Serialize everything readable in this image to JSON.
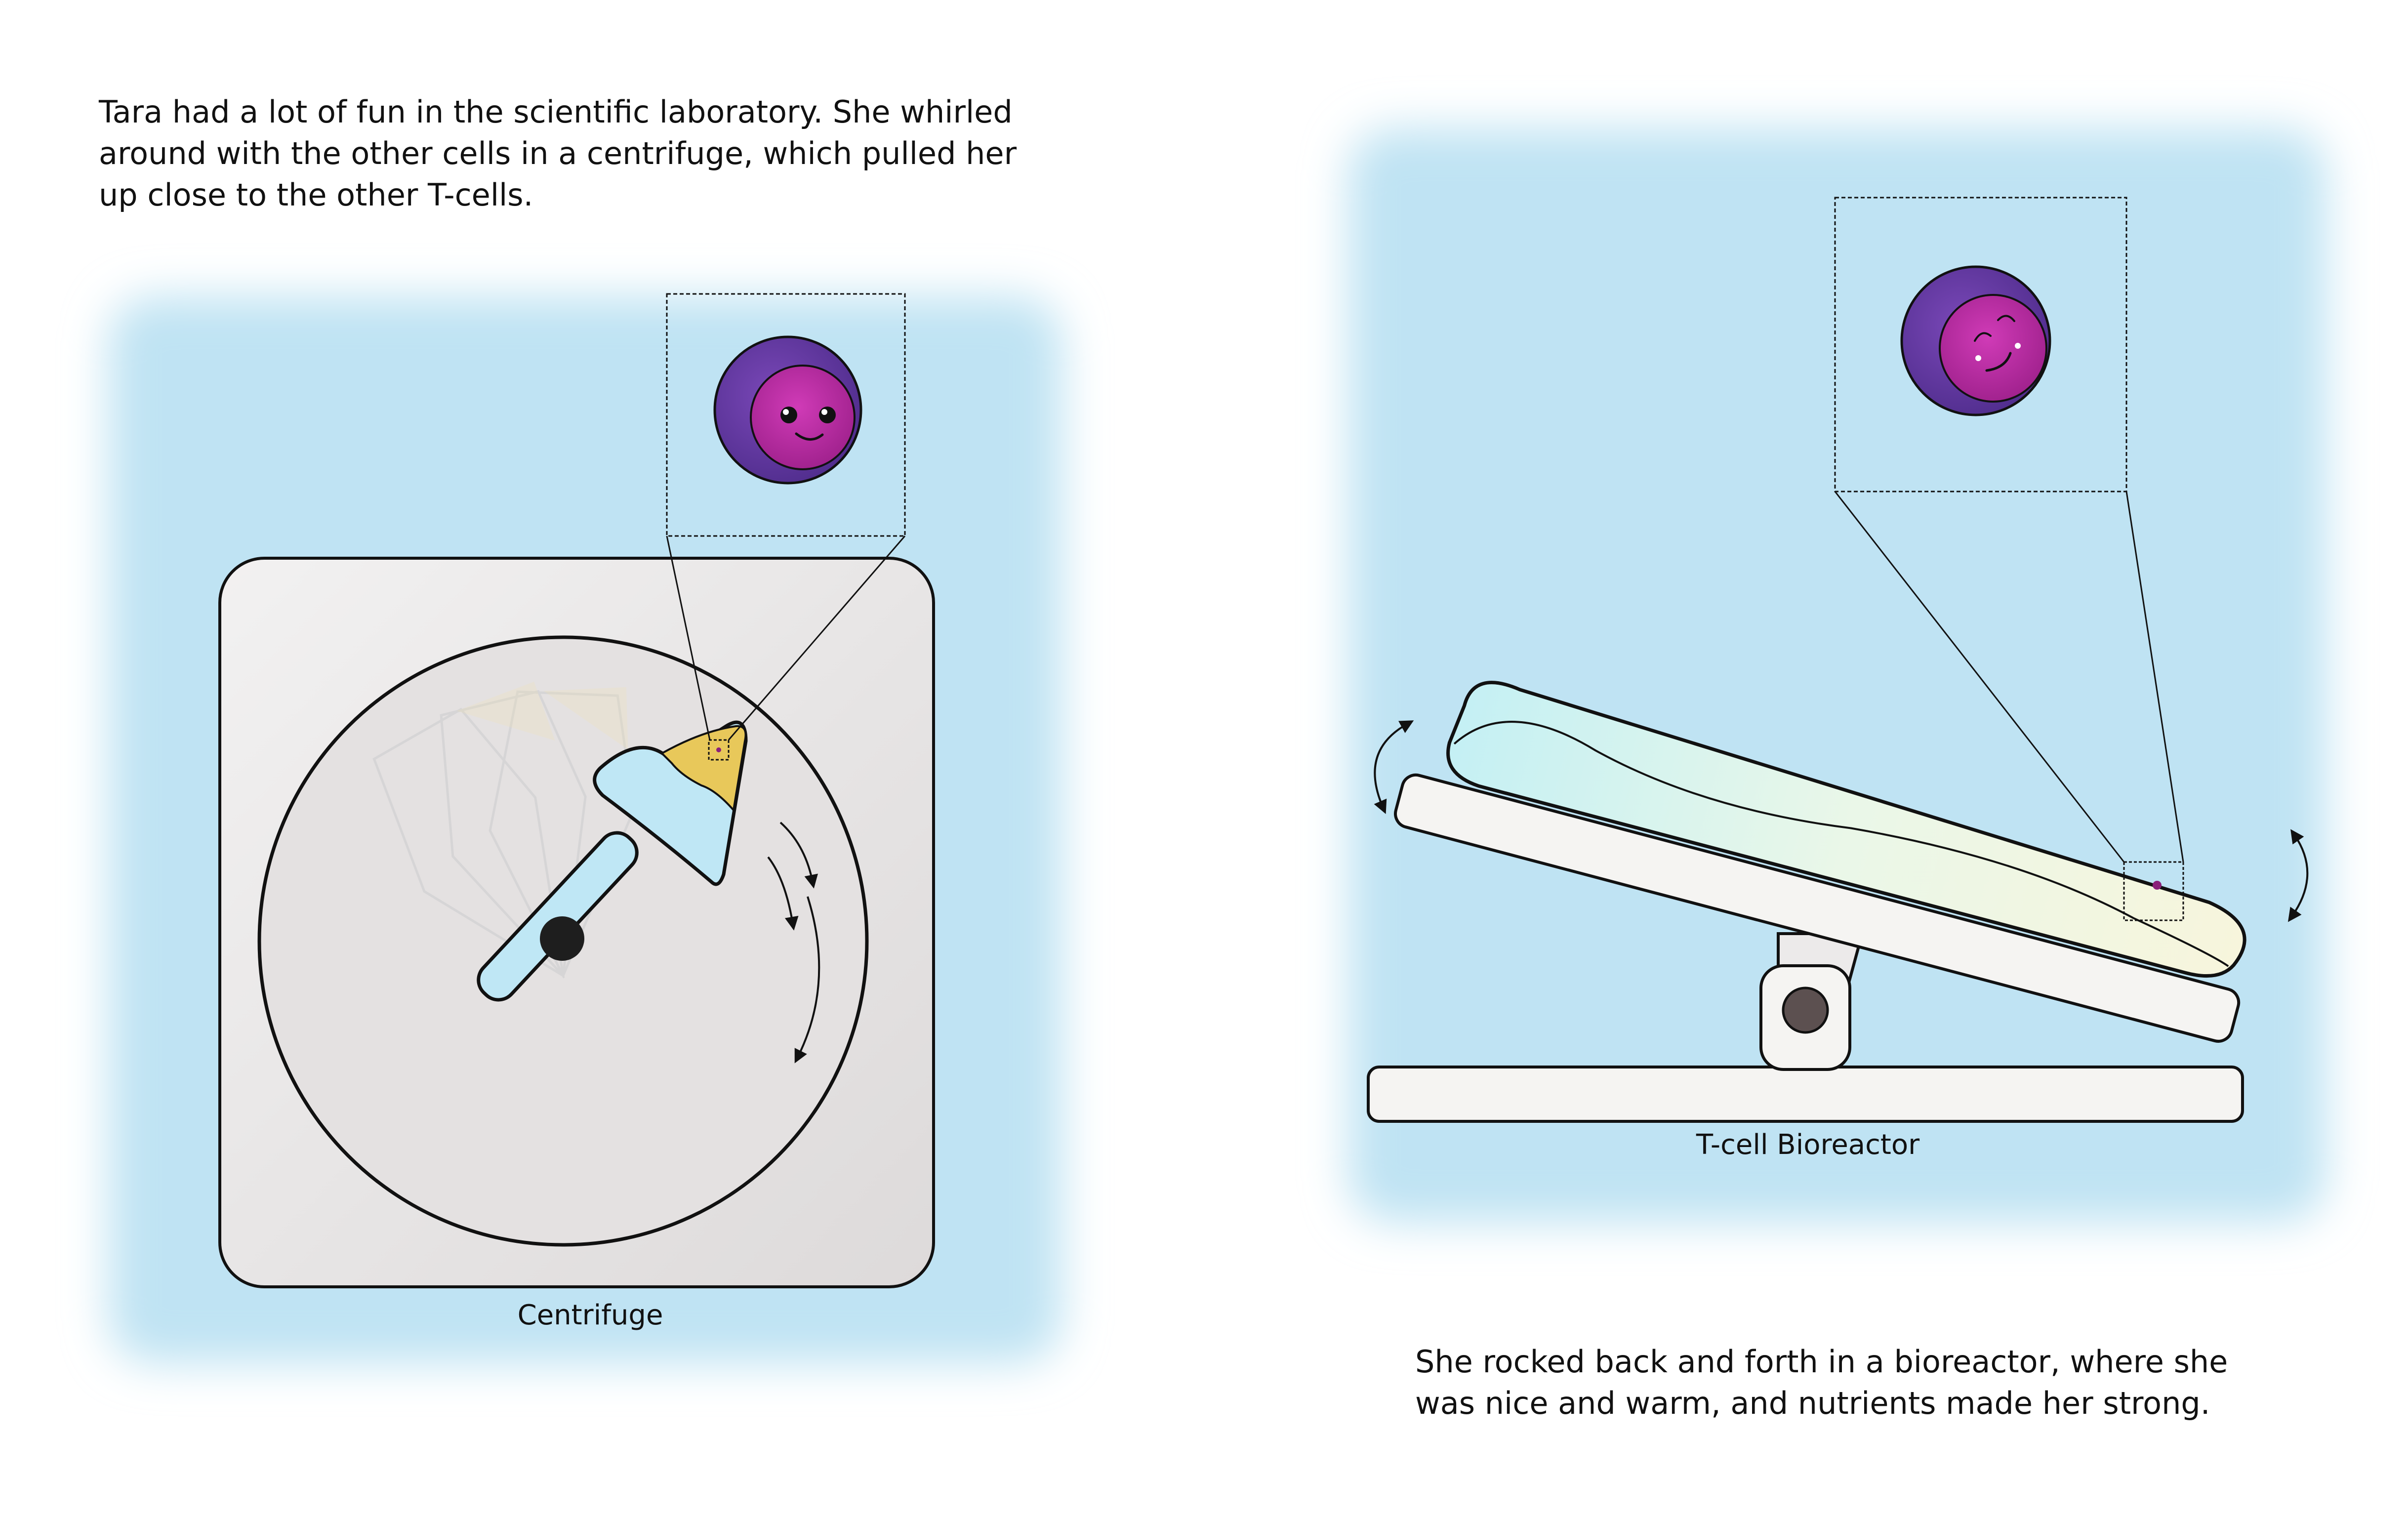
{
  "page": {
    "left": {
      "story_text": "Tara had a lot of fun in the scientific laboratory. She whirled\naround with the other cells in a centrifuge, which pulled her\nup close to the other T-cells.",
      "figure_label": "Centrifuge"
    },
    "right": {
      "story_text": "She rocked back and forth in a bioreactor, where she\nwas nice and warm, and nutrients made her strong.",
      "figure_label": "T-cell Bioreactor"
    }
  },
  "colors": {
    "panel_background": "#bfe3f3",
    "cell_outer": "#6a3aa2",
    "cell_inner": "#b5249f",
    "centrifuge_body": "#e6e4e4",
    "tube_liquid": "#bfe7f5",
    "pellet_yellow": "#e8c85a"
  },
  "icons": {
    "cell_character": "smiling-t-cell-icon",
    "rotation_arrows": "curved-arrows-icon",
    "rocking_arrows": "double-headed-curved-arrow-icon"
  }
}
